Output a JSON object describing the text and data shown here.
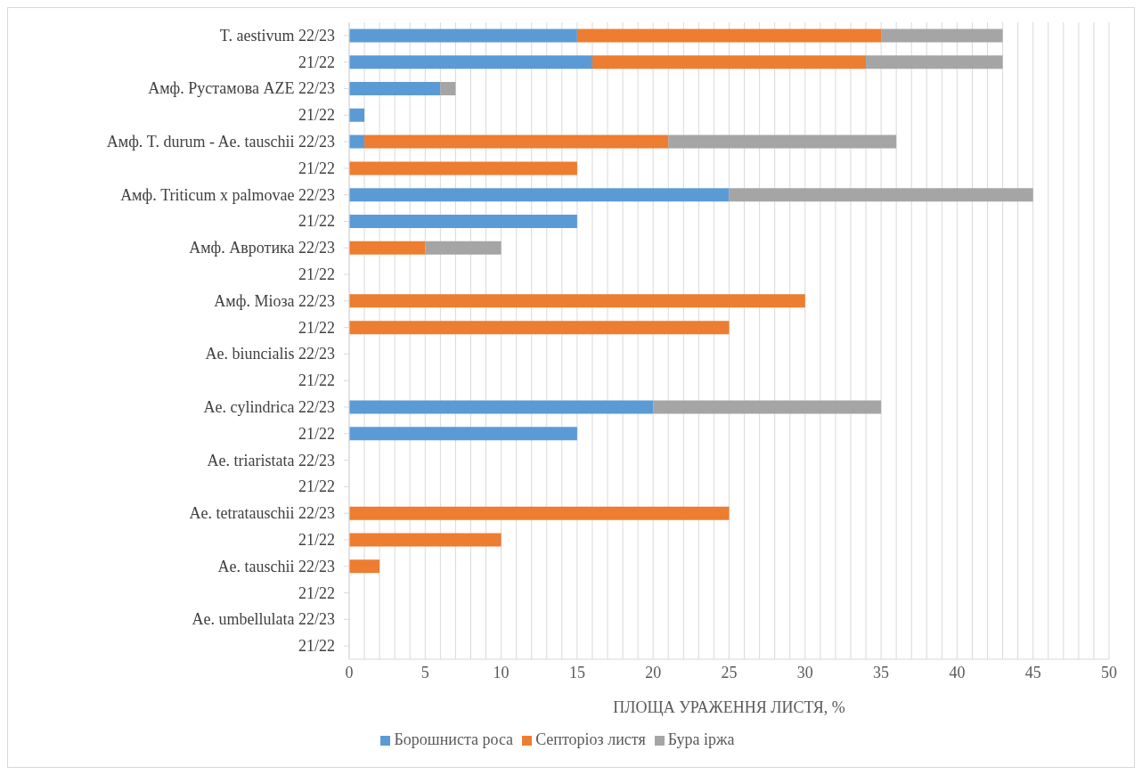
{
  "chart_data": {
    "type": "bar",
    "orientation": "horizontal",
    "stacked": true,
    "xlabel": "ПЛОЩА УРАЖЕННЯ ЛИСТЯ, %",
    "categories": [
      "T. aestivum 22/23",
      "21/22",
      "Амф. Рустамова AZE 22/23",
      "21/22",
      "Амф. T. durum - Ae. tauschii 22/23",
      "21/22",
      "Амф. Triticum x palmovae 22/23",
      "21/22",
      "Амф. Авротика 22/23",
      "21/22",
      "Амф. Міоза 22/23",
      "21/22",
      "Ae. biuncialis 22/23",
      "21/22",
      "Ae. cylindrica 22/23",
      "21/22",
      "Ae. triaristata 22/23",
      "21/22",
      "Ae. tetratauschii 22/23",
      "21/22",
      "Ae. tauschii 22/23",
      "21/22",
      "Ae. umbellulata 22/23",
      "21/22"
    ],
    "series": [
      {
        "name": "Борошниста роса",
        "color": "#5b9bd5",
        "values": [
          15,
          16,
          6,
          1,
          1,
          null,
          25,
          15,
          null,
          null,
          null,
          null,
          null,
          null,
          20,
          15,
          null,
          null,
          null,
          null,
          null,
          null,
          null,
          null
        ]
      },
      {
        "name": "Септоріоз листя",
        "color": "#ed7d31",
        "values": [
          20,
          18,
          null,
          null,
          20,
          15,
          null,
          null,
          5,
          null,
          30,
          25,
          null,
          null,
          null,
          null,
          null,
          null,
          25,
          10,
          2,
          null,
          null,
          null
        ]
      },
      {
        "name": "Бура іржа",
        "color": "#a5a5a5",
        "values": [
          8,
          9,
          1,
          null,
          15,
          null,
          20,
          null,
          5,
          null,
          null,
          null,
          null,
          null,
          15,
          null,
          null,
          null,
          null,
          null,
          null,
          null,
          null,
          null
        ]
      }
    ],
    "xlim": [
      0,
      50
    ],
    "xticks": [
      0,
      {
        "value": 1,
        "label": null
      },
      {
        "value": 2,
        "label": null
      },
      {
        "value": 3,
        "label": null
      },
      {
        "value": 4,
        "label": null
      },
      5,
      {
        "value": 6,
        "label": null
      },
      {
        "value": 7,
        "label": null
      },
      {
        "value": 8,
        "label": null
      },
      {
        "value": 9,
        "label": null
      },
      10,
      {
        "value": 11,
        "label": null
      },
      {
        "value": 12,
        "label": null
      },
      {
        "value": 13,
        "label": null
      },
      {
        "value": 14,
        "label": null
      },
      15,
      {
        "value": 16,
        "label": null
      },
      {
        "value": 17,
        "label": null
      },
      {
        "value": 18,
        "label": null
      },
      {
        "value": 19,
        "label": null
      },
      20,
      {
        "value": 21,
        "label": null
      },
      {
        "value": 22,
        "label": null
      },
      {
        "value": 23,
        "label": null
      },
      {
        "value": 24,
        "label": null
      },
      25,
      {
        "value": 26,
        "label": null
      },
      {
        "value": 27,
        "label": null
      },
      {
        "value": 28,
        "label": null
      },
      {
        "value": 29,
        "label": null
      },
      30,
      {
        "value": 31,
        "label": null
      },
      {
        "value": 32,
        "label": null
      },
      {
        "value": 33,
        "label": null
      },
      {
        "value": 34,
        "label": null
      },
      35,
      {
        "value": 36,
        "label": null
      },
      {
        "value": 37,
        "label": null
      },
      {
        "value": 38,
        "label": null
      },
      {
        "value": 39,
        "label": null
      },
      40,
      {
        "value": 41,
        "label": null
      },
      {
        "value": 42,
        "label": null
      },
      {
        "value": 43,
        "label": null
      },
      {
        "value": 44,
        "label": null
      },
      45,
      {
        "value": 46,
        "label": null
      },
      {
        "value": 47,
        "label": null
      },
      {
        "value": 48,
        "label": null
      },
      {
        "value": 49,
        "label": null
      },
      50
    ],
    "grid": "x",
    "legend": "bottom"
  }
}
